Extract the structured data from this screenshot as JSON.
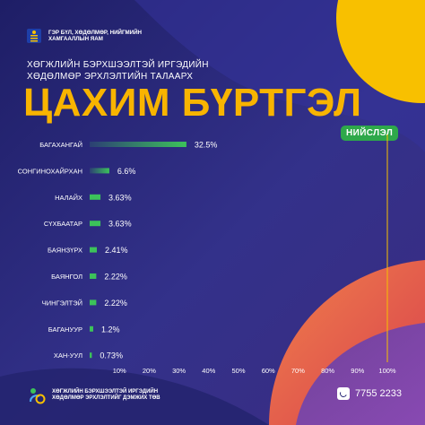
{
  "header": {
    "ministry_name": "ГЭР БҮЛ, ХӨДӨЛМӨР, НИЙГМИЙН ХАМГААЛЛЫН ЯАМ",
    "subtitle_line1": "ХӨГЖЛИЙН БЭРХШЭЭЛТЭЙ ИРГЭДИЙН",
    "subtitle_line2": "ХӨДӨЛМӨР ЭРХЛЭЛТИЙН ТАЛААРХ",
    "title": "ЦАХИМ БҮРТГЭЛ",
    "badge": "НИЙСЛЭЛ"
  },
  "colors": {
    "background": "#2a2a78",
    "title": "#f8b400",
    "accent_yellow": "#f8c000",
    "bar_green": "#3cc25a",
    "badge_green": "#2ea84a",
    "coral": "#e85a50"
  },
  "chart_data": {
    "type": "bar",
    "orientation": "horizontal",
    "categories": [
      "БАГАХАНГАЙ",
      "СОНГИНОХАЙРХАН",
      "НАЛАЙХ",
      "СҮХБААТАР",
      "БАЯНЗҮРХ",
      "БАЯНГОЛ",
      "ЧИНГЭЛТЭЙ",
      "БАГАНУУР",
      "ХАН-УУЛ"
    ],
    "values": [
      32.5,
      6.6,
      3.63,
      3.63,
      2.41,
      2.22,
      2.22,
      1.2,
      0.73
    ],
    "value_labels": [
      "32.5%",
      "6.6%",
      "3.63%",
      "3.63%",
      "2.41%",
      "2.22%",
      "2.22%",
      "1.2%",
      "0.73%"
    ],
    "xlim": [
      0,
      100
    ],
    "x_ticks": [
      "10%",
      "20%",
      "30%",
      "40%",
      "50%",
      "60%",
      "70%",
      "80%",
      "90%",
      "100%"
    ],
    "grid": false
  },
  "footer": {
    "org_line1": "ХӨГЖЛИЙН БЭРХШЭЭЛТЭЙ ИРГЭДИЙН",
    "org_line2": "ХӨДӨЛМӨР ЭРХЛЭЛТИЙГ ДЭМЖИХ ТӨВ",
    "phone": "7755 2233",
    "phone_icon": "phone-icon"
  }
}
